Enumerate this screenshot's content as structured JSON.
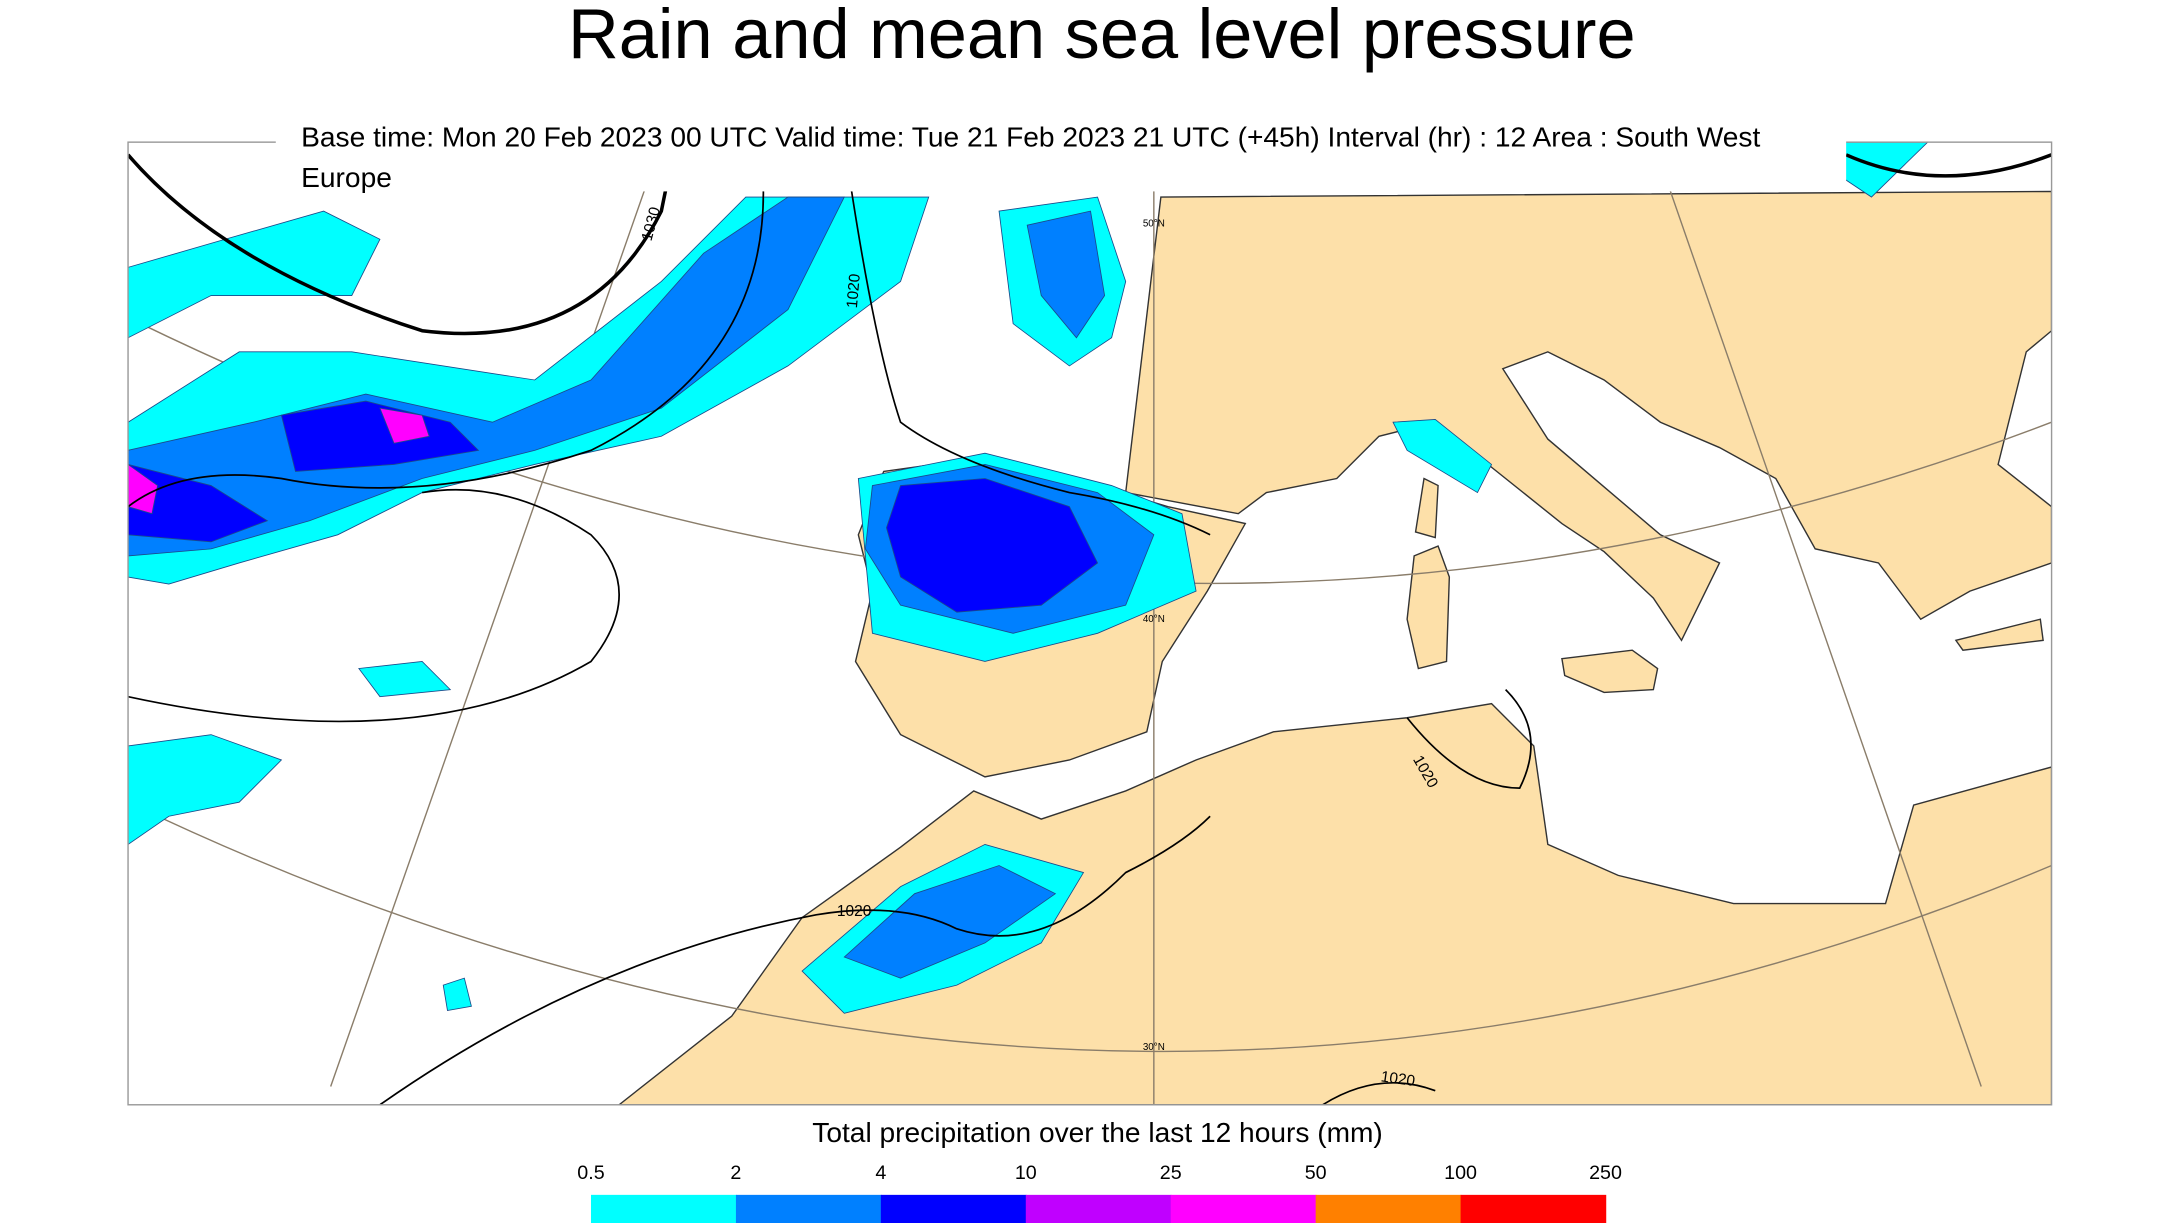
{
  "title": "Rain and mean sea level pressure",
  "subtitle": "Base time: Mon 20 Feb 2023 00 UTC Valid time: Tue 21 Feb 2023 21 UTC (+45h) Interval (hr) : 12 Area : South West Europe",
  "map": {
    "isobar_labels": [
      "1030",
      "1020",
      "1020",
      "1020",
      "1020"
    ],
    "latitude_labels": [
      "50°N",
      "40°N",
      "30°N"
    ]
  },
  "legend": {
    "title": "Total precipitation over the last 12 hours (mm)",
    "ticks": [
      0.5,
      2,
      4,
      10,
      25,
      50,
      100,
      250
    ],
    "colors": [
      "#00ffff",
      "#0080ff",
      "#0000ff",
      "#c000ff",
      "#ff00ff",
      "#ff8000",
      "#ff0000"
    ]
  }
}
